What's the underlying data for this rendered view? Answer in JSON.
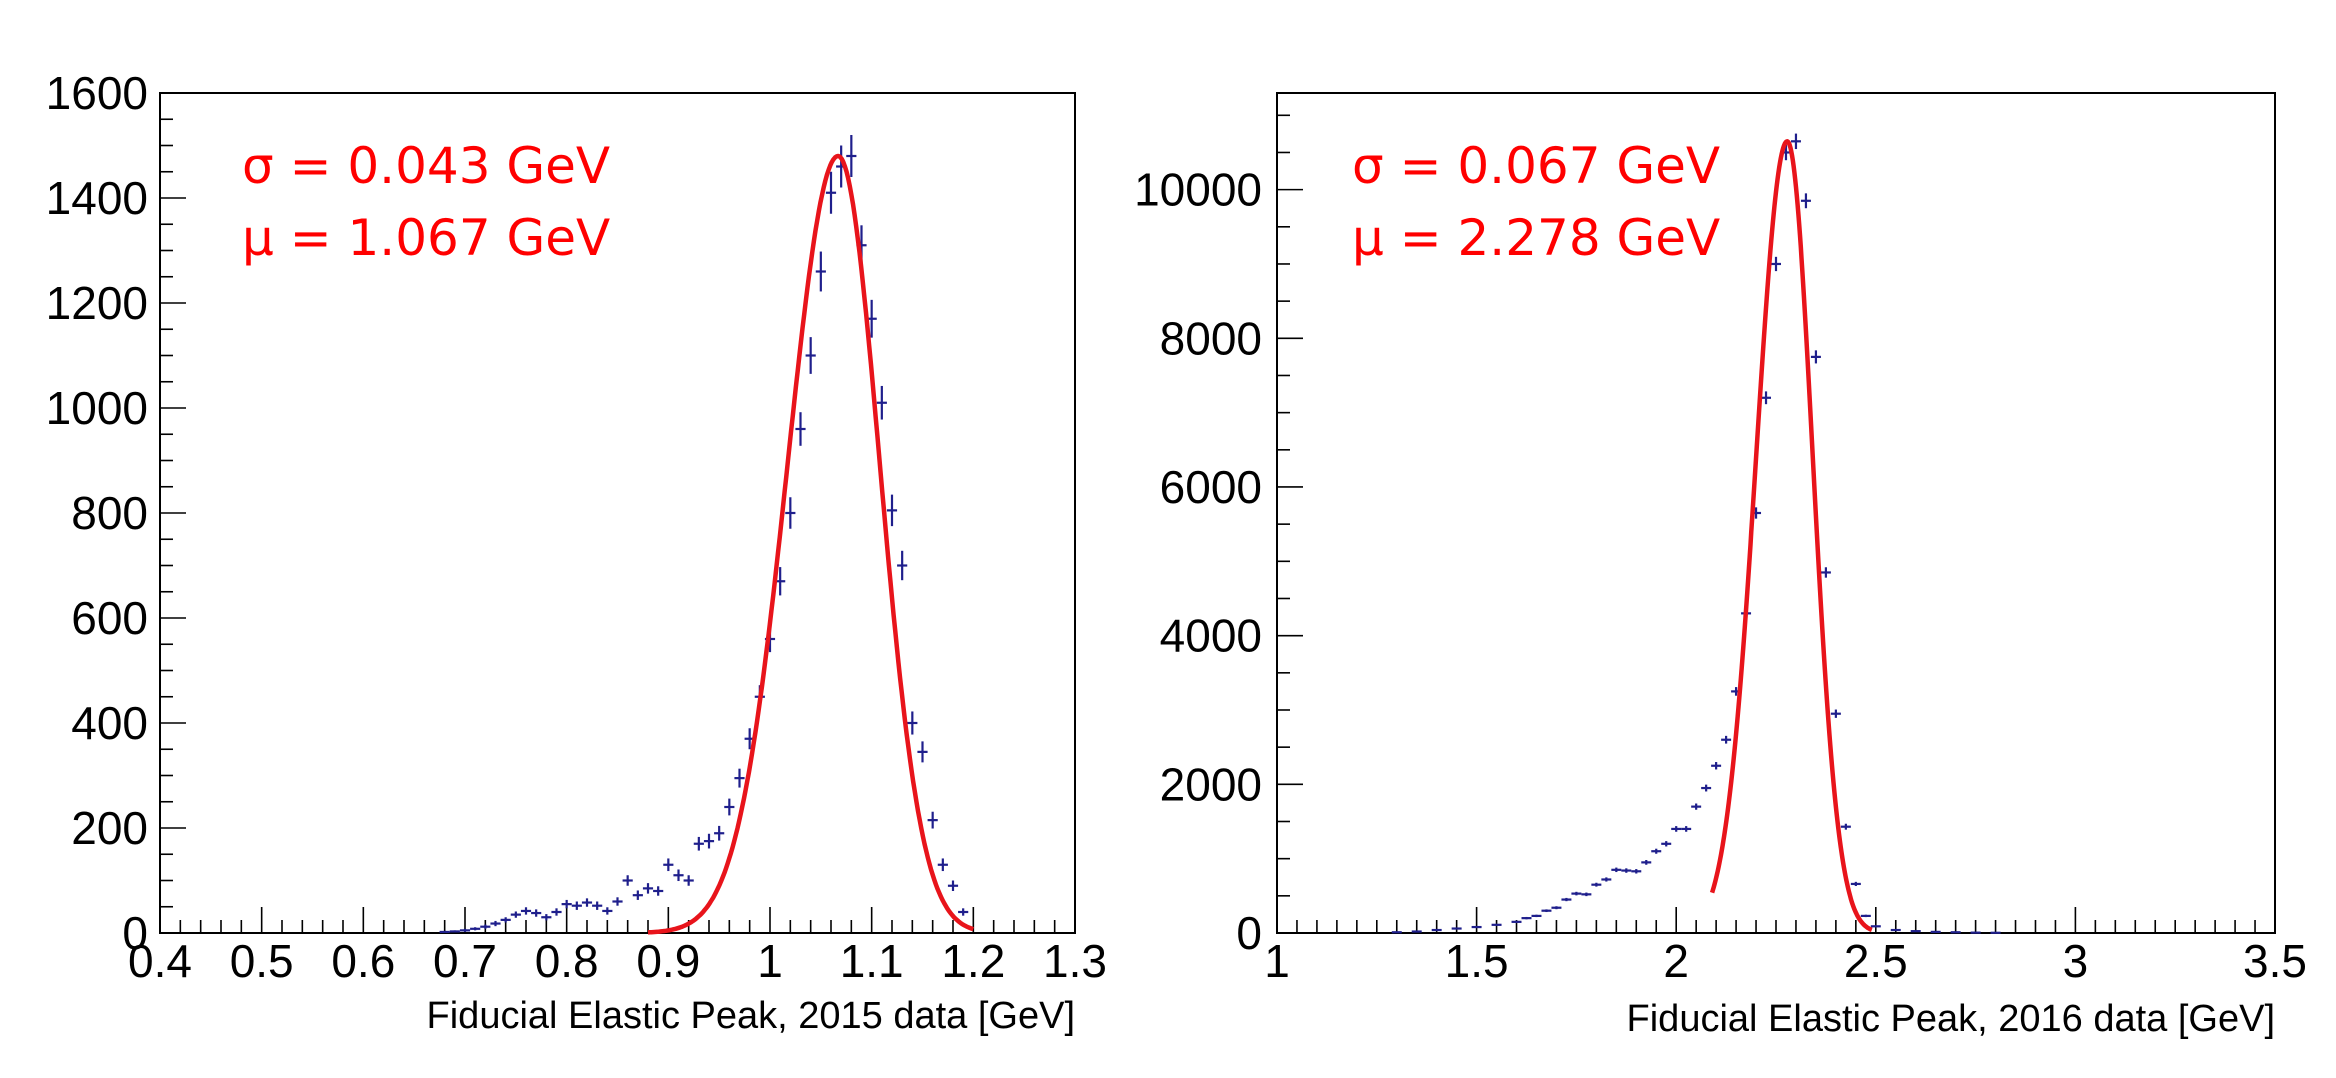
{
  "chart_data": [
    {
      "type": "scatter",
      "xlabel": "Fiducial Elastic Peak, 2015 data [GeV]",
      "ylabel": "",
      "xlim": [
        0.4,
        1.3
      ],
      "ylim": [
        0,
        1600
      ],
      "xticks": [
        "0.4",
        "0.5",
        "0.6",
        "0.7",
        "0.8",
        "0.9",
        "1",
        "1.1",
        "1.2",
        "1.3"
      ],
      "yticks": [
        "0",
        "200",
        "400",
        "600",
        "800",
        "1000",
        "1200",
        "1400",
        "1600"
      ],
      "annotations": [
        "σ = 0.043 GeV",
        "μ = 1.067 GeV"
      ],
      "fit": {
        "sigma": 0.043,
        "mu": 1.067,
        "xrange": [
          0.88,
          1.2
        ],
        "color": "#e8141b"
      },
      "series": [
        {
          "color": "#1f1f8c",
          "x": [
            0.68,
            0.69,
            0.7,
            0.71,
            0.72,
            0.73,
            0.74,
            0.75,
            0.76,
            0.77,
            0.78,
            0.79,
            0.8,
            0.81,
            0.82,
            0.83,
            0.84,
            0.85,
            0.86,
            0.87,
            0.88,
            0.89,
            0.9,
            0.91,
            0.92,
            0.93,
            0.94,
            0.95,
            0.96,
            0.97,
            0.98,
            0.99,
            1.0,
            1.01,
            1.02,
            1.03,
            1.04,
            1.05,
            1.06,
            1.07,
            1.08,
            1.09,
            1.1,
            1.11,
            1.12,
            1.13,
            1.14,
            1.15,
            1.16,
            1.17,
            1.18,
            1.19
          ],
          "y": [
            2,
            3,
            5,
            8,
            12,
            18,
            25,
            35,
            42,
            38,
            30,
            40,
            55,
            52,
            58,
            52,
            42,
            60,
            100,
            72,
            85,
            80,
            130,
            110,
            100,
            170,
            175,
            190,
            240,
            295,
            370,
            450,
            560,
            670,
            800,
            960,
            1100,
            1260,
            1410,
            1460,
            1480,
            1310,
            1170,
            1010,
            805,
            700,
            400,
            345,
            215,
            130,
            90,
            40
          ],
          "err": [
            2,
            2,
            3,
            3,
            4,
            5,
            5,
            6,
            7,
            7,
            6,
            7,
            8,
            8,
            8,
            8,
            7,
            8,
            10,
            9,
            10,
            9,
            12,
            11,
            10,
            13,
            14,
            14,
            16,
            18,
            20,
            22,
            25,
            27,
            30,
            32,
            35,
            38,
            40,
            40,
            40,
            38,
            36,
            32,
            30,
            28,
            22,
            20,
            16,
            12,
            10,
            7
          ]
        }
      ]
    },
    {
      "type": "scatter",
      "xlabel": "Fiducial Elastic Peak, 2016 data [GeV]",
      "ylabel": "",
      "xlim": [
        1,
        3.5
      ],
      "ylim": [
        0,
        11300
      ],
      "xticks": [
        "1",
        "1.5",
        "2",
        "2.5",
        "3",
        "3.5"
      ],
      "yticks": [
        "0",
        "2000",
        "4000",
        "6000",
        "8000",
        "10000"
      ],
      "annotations": [
        "σ = 0.067 GeV",
        "μ = 2.278 GeV"
      ],
      "fit": {
        "sigma": 0.067,
        "mu": 2.278,
        "xrange": [
          2.09,
          2.49
        ],
        "color": "#e8141b"
      },
      "series": [
        {
          "color": "#1f1f8c",
          "x": [
            1.3,
            1.35,
            1.4,
            1.45,
            1.5,
            1.55,
            1.6,
            1.625,
            1.65,
            1.675,
            1.7,
            1.725,
            1.75,
            1.775,
            1.8,
            1.825,
            1.85,
            1.875,
            1.9,
            1.925,
            1.95,
            1.975,
            2.0,
            2.025,
            2.05,
            2.075,
            2.1,
            2.125,
            2.15,
            2.175,
            2.2,
            2.225,
            2.25,
            2.275,
            2.3,
            2.325,
            2.35,
            2.375,
            2.4,
            2.425,
            2.45,
            2.475,
            2.5,
            2.55,
            2.6,
            2.65,
            2.7,
            2.75,
            2.8
          ],
          "y": [
            10,
            20,
            40,
            60,
            80,
            110,
            150,
            200,
            230,
            300,
            340,
            450,
            530,
            520,
            650,
            720,
            850,
            840,
            830,
            950,
            1100,
            1200,
            1400,
            1400,
            1700,
            1950,
            2250,
            2600,
            3250,
            4300,
            5650,
            7200,
            9000,
            10500,
            10650,
            9850,
            7750,
            4850,
            2950,
            1430,
            660,
            230,
            90,
            40,
            25,
            15,
            10,
            5,
            3
          ],
          "err": [
            5,
            5,
            8,
            8,
            10,
            12,
            14,
            16,
            16,
            18,
            20,
            22,
            24,
            24,
            26,
            28,
            30,
            30,
            30,
            32,
            34,
            36,
            38,
            38,
            42,
            46,
            50,
            52,
            58,
            66,
            76,
            86,
            96,
            104,
            104,
            100,
            88,
            70,
            56,
            40,
            28,
            16,
            10,
            6,
            5,
            4,
            3,
            2,
            2
          ]
        }
      ]
    }
  ]
}
